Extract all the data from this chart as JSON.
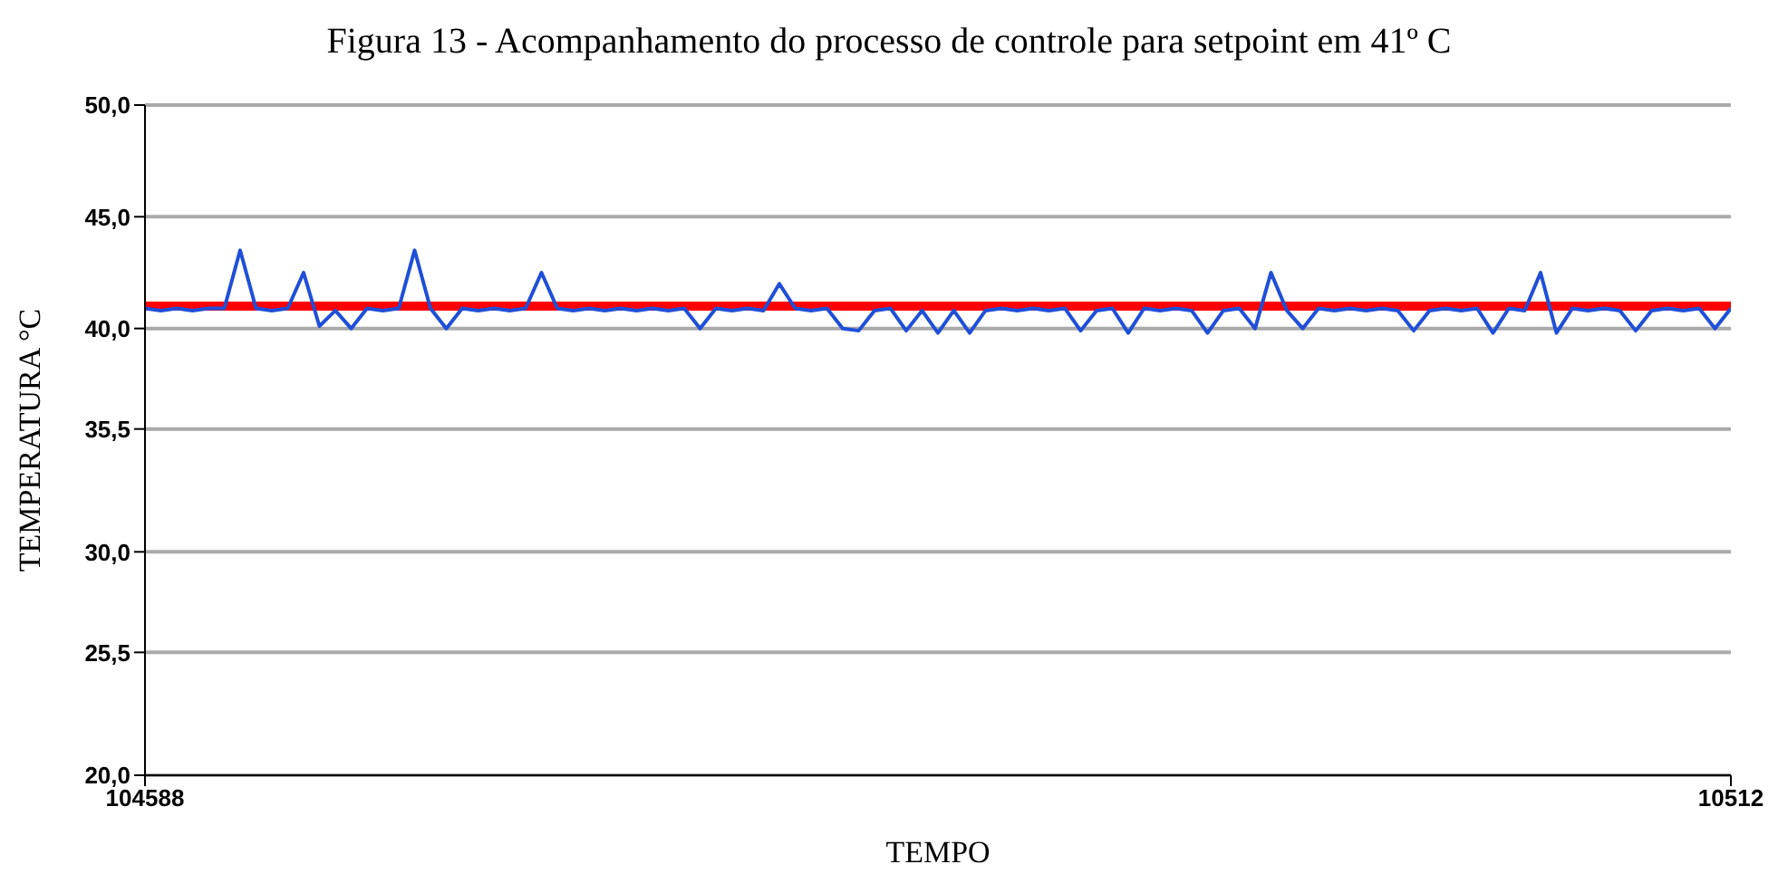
{
  "chart_data": {
    "type": "line",
    "title": "Figura 13 - Acompanhamento do processo de controle para setpoint em 41º C",
    "xlabel": "TEMPO",
    "ylabel": "TEMPERATURA °C",
    "categories": [
      "104588",
      null,
      null,
      null,
      null,
      null,
      null,
      null,
      null,
      null,
      null,
      null,
      null,
      null,
      null,
      null,
      null,
      null,
      null,
      null,
      null,
      null,
      null,
      null,
      null,
      null,
      null,
      null,
      null,
      null,
      null,
      null,
      null,
      null,
      null,
      null,
      null,
      null,
      null,
      null,
      null,
      null,
      null,
      null,
      null,
      null,
      null,
      null,
      null,
      null,
      null,
      null,
      null,
      null,
      null,
      null,
      null,
      null,
      null,
      null,
      null,
      null,
      null,
      null,
      null,
      null,
      null,
      null,
      null,
      null,
      null,
      null,
      null,
      null,
      null,
      null,
      null,
      null,
      null,
      null,
      null,
      null,
      null,
      null,
      null,
      null,
      null,
      null,
      null,
      null,
      null,
      null,
      null,
      null,
      null,
      null,
      null,
      null,
      null,
      null,
      "10512"
    ],
    "series": [
      {
        "color": "#1f4fd8",
        "values": [
          40.9,
          40.8,
          40.9,
          40.8,
          40.9,
          40.9,
          43.5,
          40.9,
          40.8,
          40.9,
          42.5,
          40.1,
          40.8,
          40.0,
          40.9,
          40.8,
          40.9,
          43.5,
          40.9,
          40.0,
          40.9,
          40.8,
          40.9,
          40.8,
          40.9,
          42.5,
          40.9,
          40.8,
          40.9,
          40.8,
          40.9,
          40.8,
          40.9,
          40.8,
          40.9,
          40.0,
          40.9,
          40.8,
          40.9,
          40.8,
          42.0,
          40.9,
          40.8,
          40.9,
          40.0,
          39.9,
          40.8,
          40.9,
          39.9,
          40.8,
          39.8,
          40.8,
          39.8,
          40.8,
          40.9,
          40.8,
          40.9,
          40.8,
          40.9,
          39.9,
          40.8,
          40.9,
          39.8,
          40.9,
          40.8,
          40.9,
          40.8,
          39.8,
          40.8,
          40.9,
          40.0,
          42.5,
          40.8,
          40.0,
          40.9,
          40.8,
          40.9,
          40.8,
          40.9,
          40.8,
          39.9,
          40.8,
          40.9,
          40.8,
          40.9,
          39.8,
          40.9,
          40.8,
          42.5,
          39.8,
          40.9,
          40.8,
          40.9,
          40.8,
          39.9,
          40.8,
          40.9,
          40.8,
          40.9,
          40.0,
          40.9
        ]
      }
    ],
    "ref_lines": [
      {
        "axis": "y",
        "value": 41,
        "color": "#ff0000"
      }
    ],
    "ylim": [
      20,
      50
    ],
    "yticks": [
      {
        "value": 20,
        "label": "20,0"
      },
      {
        "value": 25.5,
        "label": "25,5"
      },
      {
        "value": 30,
        "label": "30,0"
      },
      {
        "value": 35.5,
        "label": "35,5"
      },
      {
        "value": 40,
        "label": "40,0"
      },
      {
        "value": 45,
        "label": "45,0"
      },
      {
        "value": 50,
        "label": "50,0"
      }
    ],
    "grid": "y",
    "marker": "none",
    "line_style": "solid"
  }
}
